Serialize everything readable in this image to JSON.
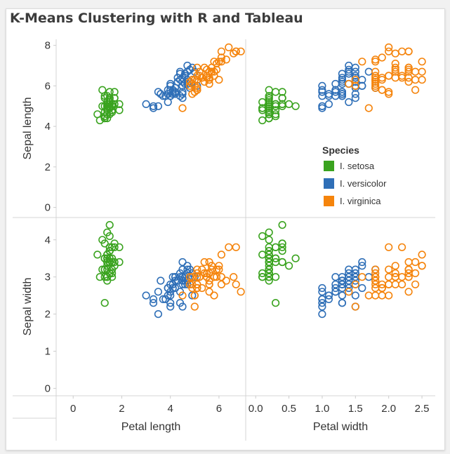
{
  "chart_data": {
    "type": "scatter",
    "title": "K-Means Clustering with R and Tableau",
    "rows": [
      {
        "field": "sepal_length",
        "label": "Sepal length",
        "range": [
          -0.5,
          8.3
        ],
        "ticks": [
          0,
          2,
          4,
          6,
          8
        ]
      },
      {
        "field": "sepal_width",
        "label": "Sepal width",
        "range": [
          -0.2,
          4.6
        ],
        "ticks": [
          0,
          1,
          2,
          3,
          4
        ]
      }
    ],
    "cols": [
      {
        "field": "petal_length",
        "label": "Petal length",
        "range": [
          -0.7,
          7.1
        ],
        "ticks": [
          0,
          2,
          4,
          6
        ]
      },
      {
        "field": "petal_width",
        "label": "Petal width",
        "range": [
          -0.15,
          2.7
        ],
        "ticks": [
          0.0,
          0.5,
          1.0,
          1.5,
          2.0,
          2.5
        ],
        "tick_labels": [
          "0.0",
          "0.5",
          "1.0",
          "1.5",
          "2.0",
          "2.5"
        ]
      }
    ],
    "legend": {
      "title": "Species",
      "position": "right, inside top-right panel",
      "entries": [
        {
          "key": "setosa",
          "label": "I. setosa",
          "color": "#3aa31f"
        },
        {
          "key": "versicolor",
          "label": "I. versicolor",
          "color": "#2f6fb7"
        },
        {
          "key": "virginica",
          "label": "I. virginica",
          "color": "#f5840c"
        }
      ]
    },
    "marker": "open-circle",
    "grid": false,
    "columns": [
      "sepal_length",
      "sepal_width",
      "petal_length",
      "petal_width"
    ],
    "series": [
      {
        "species": "setosa",
        "points": [
          [
            5.1,
            3.5,
            1.4,
            0.2
          ],
          [
            4.9,
            3.0,
            1.4,
            0.2
          ],
          [
            4.7,
            3.2,
            1.3,
            0.2
          ],
          [
            4.6,
            3.1,
            1.5,
            0.2
          ],
          [
            5.0,
            3.6,
            1.4,
            0.2
          ],
          [
            5.4,
            3.9,
            1.7,
            0.4
          ],
          [
            4.6,
            3.4,
            1.4,
            0.3
          ],
          [
            5.0,
            3.4,
            1.5,
            0.2
          ],
          [
            4.4,
            2.9,
            1.4,
            0.2
          ],
          [
            4.9,
            3.1,
            1.5,
            0.1
          ],
          [
            5.4,
            3.7,
            1.5,
            0.2
          ],
          [
            4.8,
            3.4,
            1.6,
            0.2
          ],
          [
            4.8,
            3.0,
            1.4,
            0.1
          ],
          [
            4.3,
            3.0,
            1.1,
            0.1
          ],
          [
            5.8,
            4.0,
            1.2,
            0.2
          ],
          [
            5.7,
            4.4,
            1.5,
            0.4
          ],
          [
            5.4,
            3.9,
            1.3,
            0.4
          ],
          [
            5.1,
            3.5,
            1.4,
            0.3
          ],
          [
            5.7,
            3.8,
            1.7,
            0.3
          ],
          [
            5.1,
            3.8,
            1.5,
            0.3
          ],
          [
            5.4,
            3.4,
            1.7,
            0.2
          ],
          [
            5.1,
            3.7,
            1.5,
            0.4
          ],
          [
            4.6,
            3.6,
            1.0,
            0.2
          ],
          [
            5.1,
            3.3,
            1.7,
            0.5
          ],
          [
            4.8,
            3.4,
            1.9,
            0.2
          ],
          [
            5.0,
            3.0,
            1.6,
            0.2
          ],
          [
            5.0,
            3.4,
            1.6,
            0.4
          ],
          [
            5.2,
            3.5,
            1.5,
            0.2
          ],
          [
            5.2,
            3.4,
            1.4,
            0.2
          ],
          [
            4.7,
            3.2,
            1.6,
            0.2
          ],
          [
            4.8,
            3.1,
            1.6,
            0.2
          ],
          [
            5.4,
            3.4,
            1.5,
            0.4
          ],
          [
            5.2,
            4.1,
            1.5,
            0.1
          ],
          [
            5.5,
            4.2,
            1.4,
            0.2
          ],
          [
            4.9,
            3.1,
            1.5,
            0.2
          ],
          [
            5.0,
            3.2,
            1.2,
            0.2
          ],
          [
            5.5,
            3.5,
            1.3,
            0.2
          ],
          [
            4.9,
            3.6,
            1.4,
            0.1
          ],
          [
            4.4,
            3.0,
            1.3,
            0.2
          ],
          [
            5.1,
            3.4,
            1.5,
            0.2
          ],
          [
            5.0,
            3.5,
            1.3,
            0.3
          ],
          [
            4.5,
            2.3,
            1.3,
            0.3
          ],
          [
            4.4,
            3.2,
            1.3,
            0.2
          ],
          [
            5.0,
            3.5,
            1.6,
            0.6
          ],
          [
            5.1,
            3.8,
            1.9,
            0.4
          ],
          [
            4.8,
            3.0,
            1.4,
            0.3
          ],
          [
            5.1,
            3.8,
            1.6,
            0.2
          ],
          [
            4.6,
            3.2,
            1.4,
            0.2
          ],
          [
            5.3,
            3.7,
            1.5,
            0.2
          ],
          [
            5.0,
            3.3,
            1.4,
            0.2
          ]
        ]
      },
      {
        "species": "versicolor",
        "points": [
          [
            7.0,
            3.2,
            4.7,
            1.4
          ],
          [
            6.4,
            3.2,
            4.5,
            1.5
          ],
          [
            6.9,
            3.1,
            4.9,
            1.5
          ],
          [
            5.5,
            2.3,
            4.0,
            1.3
          ],
          [
            6.5,
            2.8,
            4.6,
            1.5
          ],
          [
            5.7,
            2.8,
            4.5,
            1.3
          ],
          [
            6.3,
            3.3,
            4.7,
            1.6
          ],
          [
            4.9,
            2.4,
            3.3,
            1.0
          ],
          [
            6.6,
            2.9,
            4.6,
            1.3
          ],
          [
            5.2,
            2.7,
            3.9,
            1.4
          ],
          [
            5.0,
            2.0,
            3.5,
            1.0
          ],
          [
            5.9,
            3.0,
            4.2,
            1.5
          ],
          [
            6.0,
            2.2,
            4.0,
            1.0
          ],
          [
            6.1,
            2.9,
            4.7,
            1.4
          ],
          [
            5.6,
            2.9,
            3.6,
            1.3
          ],
          [
            6.7,
            3.1,
            4.4,
            1.4
          ],
          [
            5.6,
            3.0,
            4.5,
            1.5
          ],
          [
            5.8,
            2.7,
            4.1,
            1.0
          ],
          [
            6.2,
            2.2,
            4.5,
            1.5
          ],
          [
            5.6,
            2.5,
            3.9,
            1.1
          ],
          [
            5.9,
            3.2,
            4.8,
            1.8
          ],
          [
            6.1,
            2.8,
            4.0,
            1.3
          ],
          [
            6.3,
            2.5,
            4.9,
            1.5
          ],
          [
            6.1,
            2.8,
            4.7,
            1.2
          ],
          [
            6.4,
            2.9,
            4.3,
            1.3
          ],
          [
            6.6,
            3.0,
            4.4,
            1.4
          ],
          [
            6.8,
            2.8,
            4.8,
            1.4
          ],
          [
            6.7,
            3.0,
            5.0,
            1.7
          ],
          [
            6.0,
            2.9,
            4.5,
            1.5
          ],
          [
            5.7,
            2.6,
            3.5,
            1.0
          ],
          [
            5.5,
            2.4,
            3.8,
            1.1
          ],
          [
            5.5,
            2.4,
            3.7,
            1.0
          ],
          [
            5.8,
            2.7,
            3.9,
            1.2
          ],
          [
            6.0,
            2.7,
            5.1,
            1.6
          ],
          [
            5.4,
            3.0,
            4.5,
            1.5
          ],
          [
            6.0,
            3.4,
            4.5,
            1.6
          ],
          [
            6.7,
            3.1,
            4.7,
            1.5
          ],
          [
            6.3,
            2.3,
            4.4,
            1.3
          ],
          [
            5.6,
            3.0,
            4.1,
            1.3
          ],
          [
            5.5,
            2.5,
            4.0,
            1.3
          ],
          [
            5.5,
            2.6,
            4.4,
            1.2
          ],
          [
            6.1,
            3.0,
            4.6,
            1.4
          ],
          [
            5.8,
            2.6,
            4.0,
            1.2
          ],
          [
            5.0,
            2.3,
            3.3,
            1.0
          ],
          [
            5.6,
            2.7,
            4.2,
            1.3
          ],
          [
            5.7,
            3.0,
            4.2,
            1.2
          ],
          [
            5.7,
            2.9,
            4.2,
            1.3
          ],
          [
            6.2,
            2.9,
            4.3,
            1.3
          ],
          [
            5.1,
            2.5,
            3.0,
            1.1
          ],
          [
            5.7,
            2.8,
            4.1,
            1.3
          ]
        ]
      },
      {
        "species": "virginica",
        "points": [
          [
            6.3,
            3.3,
            6.0,
            2.5
          ],
          [
            5.8,
            2.7,
            5.1,
            1.9
          ],
          [
            7.1,
            3.0,
            5.9,
            2.1
          ],
          [
            6.3,
            2.9,
            5.6,
            1.8
          ],
          [
            6.5,
            3.0,
            5.8,
            2.2
          ],
          [
            7.6,
            3.0,
            6.6,
            2.1
          ],
          [
            4.9,
            2.5,
            4.5,
            1.7
          ],
          [
            7.3,
            2.9,
            6.3,
            1.8
          ],
          [
            6.7,
            2.5,
            5.8,
            1.8
          ],
          [
            7.2,
            3.6,
            6.1,
            2.5
          ],
          [
            6.5,
            3.2,
            5.1,
            2.0
          ],
          [
            6.4,
            2.7,
            5.3,
            1.9
          ],
          [
            6.8,
            3.0,
            5.5,
            2.1
          ],
          [
            5.7,
            2.5,
            5.0,
            2.0
          ],
          [
            5.8,
            2.8,
            5.1,
            2.4
          ],
          [
            6.4,
            3.2,
            5.3,
            2.3
          ],
          [
            6.5,
            3.0,
            5.5,
            1.8
          ],
          [
            7.7,
            3.8,
            6.7,
            2.2
          ],
          [
            7.7,
            2.6,
            6.9,
            2.3
          ],
          [
            6.0,
            2.2,
            5.0,
            1.5
          ],
          [
            6.9,
            3.2,
            5.7,
            2.3
          ],
          [
            5.6,
            2.8,
            4.9,
            2.0
          ],
          [
            7.7,
            2.8,
            6.7,
            2.0
          ],
          [
            6.3,
            2.7,
            4.9,
            1.8
          ],
          [
            6.7,
            3.3,
            5.7,
            2.1
          ],
          [
            7.2,
            3.2,
            6.0,
            1.8
          ],
          [
            6.2,
            2.8,
            4.8,
            1.8
          ],
          [
            6.1,
            3.0,
            4.9,
            1.8
          ],
          [
            6.4,
            2.8,
            5.6,
            2.1
          ],
          [
            7.2,
            3.0,
            5.8,
            1.6
          ],
          [
            7.4,
            2.8,
            6.1,
            1.9
          ],
          [
            7.9,
            3.8,
            6.4,
            2.0
          ],
          [
            6.4,
            2.8,
            5.6,
            2.2
          ],
          [
            6.3,
            2.8,
            5.1,
            1.5
          ],
          [
            6.1,
            2.6,
            5.6,
            1.4
          ],
          [
            7.7,
            3.0,
            6.1,
            2.3
          ],
          [
            6.3,
            3.4,
            5.6,
            2.4
          ],
          [
            6.4,
            3.1,
            5.5,
            1.8
          ],
          [
            6.0,
            3.0,
            4.8,
            1.8
          ],
          [
            6.9,
            3.1,
            5.4,
            2.1
          ],
          [
            6.7,
            3.1,
            5.6,
            2.4
          ],
          [
            6.9,
            3.1,
            5.1,
            2.3
          ],
          [
            5.8,
            2.7,
            5.1,
            1.9
          ],
          [
            6.8,
            3.2,
            5.9,
            2.3
          ],
          [
            6.7,
            3.3,
            5.7,
            2.5
          ],
          [
            6.7,
            3.0,
            5.2,
            2.3
          ],
          [
            6.3,
            2.5,
            5.0,
            1.9
          ],
          [
            6.5,
            3.0,
            5.2,
            2.0
          ],
          [
            6.2,
            3.4,
            5.4,
            2.3
          ],
          [
            5.9,
            3.0,
            5.1,
            1.8
          ]
        ]
      }
    ]
  }
}
